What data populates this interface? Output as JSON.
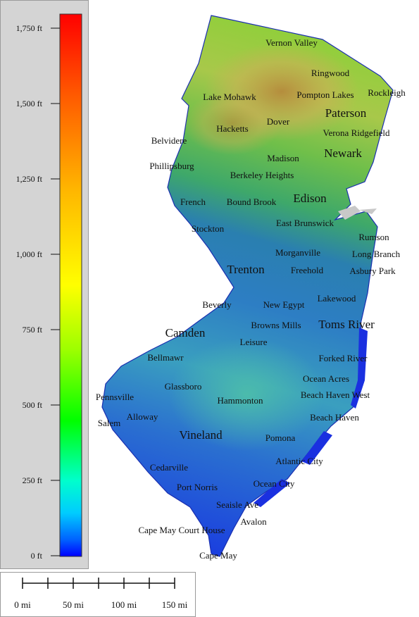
{
  "legend": {
    "ticks": [
      "1,750 ft",
      "1,500 ft",
      "1,250 ft",
      "1,000 ft",
      "750 ft",
      "500 ft",
      "250 ft",
      "0 ft"
    ],
    "gradient_colors": [
      "#ff0000",
      "#ff6a00",
      "#ffcc00",
      "#ffff00",
      "#9cff00",
      "#00ff00",
      "#00ffcc",
      "#00ffff",
      "#0066ff",
      "#0000ff"
    ]
  },
  "scale_bar": {
    "labels": [
      "0 mi",
      "50 mi",
      "100 mi",
      "150 mi"
    ]
  },
  "places": [
    {
      "name": "Vernon Valley",
      "size": "small"
    },
    {
      "name": "Ringwood",
      "size": "small"
    },
    {
      "name": "Rockleigh",
      "size": "small"
    },
    {
      "name": "Lake Mohawk",
      "size": "small"
    },
    {
      "name": "Pompton Lakes",
      "size": "small"
    },
    {
      "name": "Paterson",
      "size": "large"
    },
    {
      "name": "Dover",
      "size": "small"
    },
    {
      "name": "Verona Ridgefield",
      "size": "small"
    },
    {
      "name": "Hacketts",
      "size": "small"
    },
    {
      "name": "Belvidere",
      "size": "small"
    },
    {
      "name": "Newark",
      "size": "large"
    },
    {
      "name": "Madison",
      "size": "small"
    },
    {
      "name": "Phillipsburg",
      "size": "small"
    },
    {
      "name": "Berkeley Heights",
      "size": "small"
    },
    {
      "name": "Edison",
      "size": "large"
    },
    {
      "name": "French",
      "size": "small"
    },
    {
      "name": "Bound Brook",
      "size": "small"
    },
    {
      "name": "East Brunswick",
      "size": "small"
    },
    {
      "name": "Stockton",
      "size": "small"
    },
    {
      "name": "Rumson",
      "size": "small"
    },
    {
      "name": "Morganville",
      "size": "small"
    },
    {
      "name": "Long Branch",
      "size": "small"
    },
    {
      "name": "Trenton",
      "size": "large"
    },
    {
      "name": "Freehold",
      "size": "small"
    },
    {
      "name": "Asbury Park",
      "size": "small"
    },
    {
      "name": "Lakewood",
      "size": "small"
    },
    {
      "name": "Beverly",
      "size": "small"
    },
    {
      "name": "New Egypt",
      "size": "small"
    },
    {
      "name": "Browns Mills",
      "size": "small"
    },
    {
      "name": "Toms River",
      "size": "large"
    },
    {
      "name": "Camden",
      "size": "large"
    },
    {
      "name": "Leisure",
      "size": "small"
    },
    {
      "name": "Bellmawr",
      "size": "small"
    },
    {
      "name": "Forked River",
      "size": "small"
    },
    {
      "name": "Ocean Acres",
      "size": "small"
    },
    {
      "name": "Glassboro",
      "size": "small"
    },
    {
      "name": "Beach Haven West",
      "size": "small"
    },
    {
      "name": "Pennsville",
      "size": "small"
    },
    {
      "name": "Hammonton",
      "size": "small"
    },
    {
      "name": "Alloway",
      "size": "small"
    },
    {
      "name": "Beach Haven",
      "size": "small"
    },
    {
      "name": "Salem",
      "size": "small"
    },
    {
      "name": "Vineland",
      "size": "large"
    },
    {
      "name": "Pomona",
      "size": "small"
    },
    {
      "name": "Atlantic City",
      "size": "small"
    },
    {
      "name": "Cedarville",
      "size": "small"
    },
    {
      "name": "Ocean City",
      "size": "small"
    },
    {
      "name": "Port Norris",
      "size": "small"
    },
    {
      "name": "Seaisle Ave",
      "size": "small"
    },
    {
      "name": "Avalon",
      "size": "small"
    },
    {
      "name": "Cape May Court House",
      "size": "small"
    },
    {
      "name": "Cape May",
      "size": "small"
    }
  ]
}
